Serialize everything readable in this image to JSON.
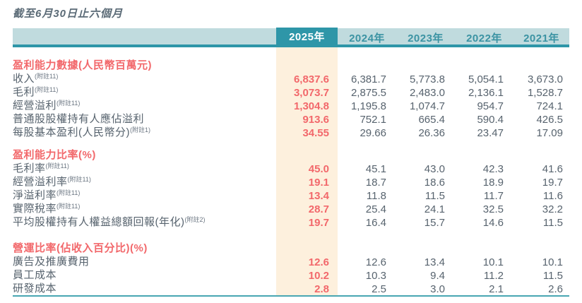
{
  "title": "截至6月30日止六個月",
  "colors": {
    "teal_dark": "#2e96a8",
    "teal_light": "#c0dbde",
    "teal_rule": "#48a6b2",
    "accent_red": "#f2686b",
    "highlight_peach": "#fdf0dd",
    "body_text": "#57636e"
  },
  "table": {
    "year_headers": [
      "2025年",
      "2024年",
      "2023年",
      "2022年",
      "2021年"
    ],
    "sections": [
      {
        "header": "盈利能力數據(人民幣百萬元)",
        "rows": [
          {
            "label": "收入",
            "note": "(附註11)",
            "values": [
              "6,837.6",
              "6,381.7",
              "5,773.8",
              "5,054.1",
              "3,673.0"
            ]
          },
          {
            "label": "毛利",
            "note": "(附註11)",
            "values": [
              "3,073.7",
              "2,875.5",
              "2,483.0",
              "2,136.1",
              "1,528.7"
            ]
          },
          {
            "label": "經營溢利",
            "note": "(附註11)",
            "values": [
              "1,304.8",
              "1,195.8",
              "1,074.7",
              "954.7",
              "724.1"
            ]
          },
          {
            "label": "普通股股權持有人應佔溢利",
            "note": "",
            "values": [
              "913.6",
              "752.1",
              "665.4",
              "590.4",
              "426.5"
            ]
          },
          {
            "label": "每股基本盈利(人民幣分)",
            "note": "(附註1)",
            "values": [
              "34.55",
              "29.66",
              "26.36",
              "23.47",
              "17.09"
            ]
          }
        ]
      },
      {
        "header": "盈利能力比率(%)",
        "rows": [
          {
            "label": "毛利率",
            "note": "(附註11)",
            "values": [
              "45.0",
              "45.1",
              "43.0",
              "42.3",
              "41.6"
            ]
          },
          {
            "label": "經營溢利率",
            "note": "(附註11)",
            "values": [
              "19.1",
              "18.7",
              "18.6",
              "18.9",
              "19.7"
            ]
          },
          {
            "label": "淨溢利率",
            "note": "(附註11)",
            "values": [
              "13.4",
              "11.8",
              "11.5",
              "11.7",
              "11.6"
            ]
          },
          {
            "label": "實際稅率",
            "note": "(附註11)",
            "values": [
              "28.7",
              "25.4",
              "24.1",
              "32.5",
              "32.2"
            ]
          },
          {
            "label": "平均股權持有人權益總額回報(年化)",
            "note": "(附註2)",
            "values": [
              "19.7",
              "16.4",
              "15.7",
              "14.6",
              "11.5"
            ]
          }
        ]
      },
      {
        "header": "營運比率(佔收入百分比)(%)",
        "rows": [
          {
            "label": "廣告及推廣費用",
            "note": "",
            "values": [
              "12.6",
              "12.6",
              "13.4",
              "10.1",
              "10.1"
            ]
          },
          {
            "label": "員工成本",
            "note": "",
            "values": [
              "10.2",
              "10.3",
              "9.4",
              "11.2",
              "11.5"
            ]
          },
          {
            "label": "研發成本",
            "note": "",
            "values": [
              "2.8",
              "2.5",
              "3.0",
              "2.1",
              "2.6"
            ]
          }
        ]
      }
    ]
  }
}
